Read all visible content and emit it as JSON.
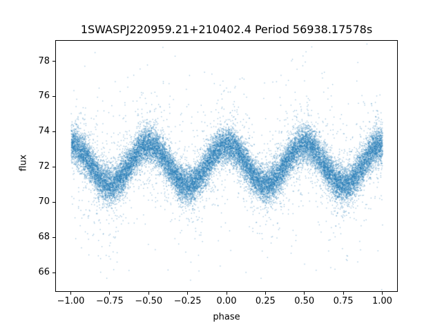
{
  "chart_data": {
    "type": "scatter",
    "title": "1SWASPJ220959.21+210402.4 Period 56938.17578s",
    "xlabel": "phase",
    "ylabel": "flux",
    "xlim": [
      -1.1,
      1.1
    ],
    "ylim": [
      64.9,
      79.2
    ],
    "xticks": {
      "values": [
        -1.0,
        -0.75,
        -0.5,
        -0.25,
        0.0,
        0.25,
        0.5,
        0.75,
        1.0
      ],
      "labels": [
        "−1.00",
        "−0.75",
        "−0.50",
        "−0.25",
        "0.00",
        "0.25",
        "0.50",
        "0.75",
        "1.00"
      ]
    },
    "yticks": {
      "values": [
        66,
        68,
        70,
        72,
        74,
        76,
        78
      ],
      "labels": [
        "66",
        "68",
        "70",
        "72",
        "74",
        "76",
        "78"
      ]
    },
    "grid": false,
    "legend": "none",
    "marker_color": "#1f77b4",
    "marker_alpha": 0.45,
    "marker_size_px": 1.3,
    "n_points": 26000,
    "seed": 42,
    "phase_range": [
      -1.0,
      1.0
    ],
    "model": {
      "description": "phase-folded light curve: flux = mean_flux + amplitude*cos(2*pi*cycles_per_phase_unit*phase) + noise; maxima at phase 0, ±0.5, ±1.0 (~73.3 flux), minima at ±0.25, ±0.75 (~71.0 flux)",
      "mean_flux": 72.15,
      "amplitude": 1.15,
      "cycles_per_phase_unit": 2,
      "core_fraction": 0.88,
      "noise_sigma": 0.5,
      "mid_fraction": 0.09,
      "mid_sigma": 1.3,
      "outlier_sigma": 2.8
    }
  }
}
